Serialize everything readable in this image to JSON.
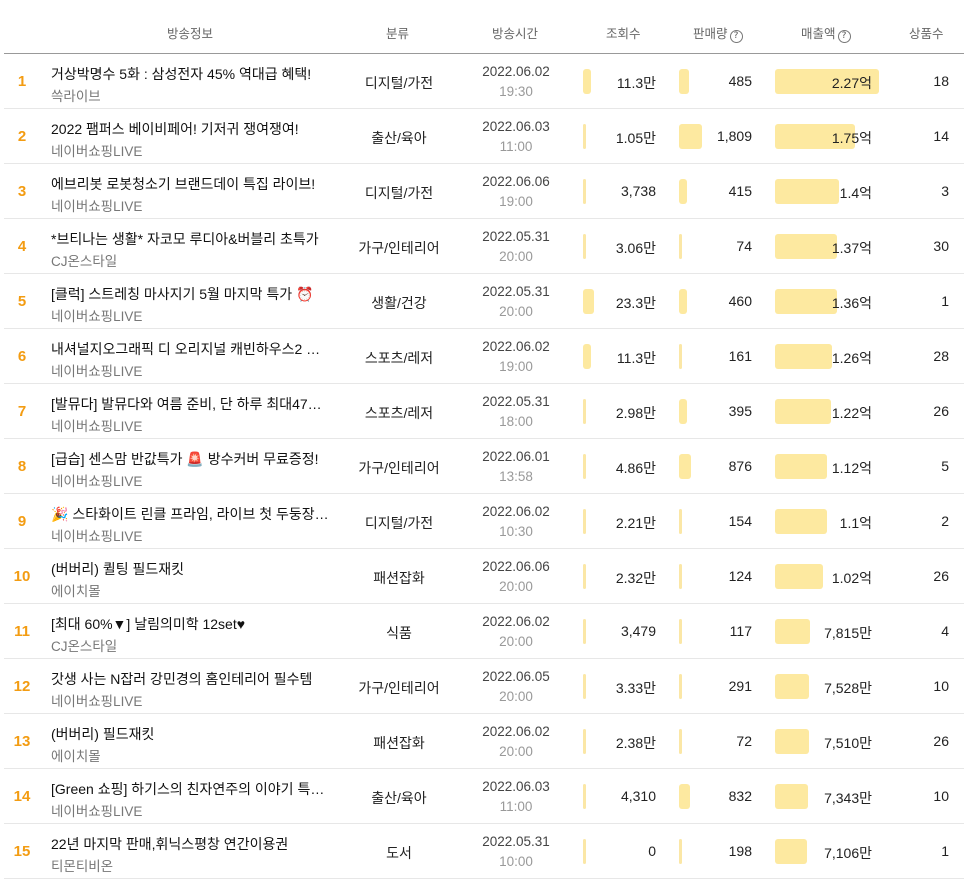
{
  "headers": {
    "info": "방송정보",
    "category": "분류",
    "time": "방송시간",
    "views": "조회수",
    "sales": "판매량",
    "revenue": "매출액",
    "count": "상품수",
    "help_glyph": "?"
  },
  "rows": [
    {
      "rank": "1",
      "title": "거상박명수 5화 : 삼성전자 45% 역대급 혜택!",
      "seller": "쓱라이브",
      "category": "디지털/가전",
      "date": "2022.06.02",
      "time": "19:30",
      "views": "11.3만",
      "sales": "485",
      "revenue": "2.27억",
      "count": "18",
      "views_level": 0.05,
      "sales_level": 0.11,
      "revenue_level": 1.0
    },
    {
      "rank": "2",
      "title": "2022 팸퍼스 베이비페어! 기저귀 쟁여쟁여!",
      "seller": "네이버쇼핑LIVE",
      "category": "출산/육아",
      "date": "2022.06.03",
      "time": "11:00",
      "views": "1.05만",
      "sales": "1,809",
      "revenue": "1.75억",
      "count": "14",
      "views_level": 0.0,
      "sales_level": 0.26,
      "revenue_level": 0.77
    },
    {
      "rank": "3",
      "title": "에브리봇 로봇청소기 브랜드데이 특집 라이브!",
      "seller": "네이버쇼핑LIVE",
      "category": "디지털/가전",
      "date": "2022.06.06",
      "time": "19:00",
      "views": "3,738",
      "sales": "415",
      "revenue": "1.4억",
      "count": "3",
      "views_level": 0.0,
      "sales_level": 0.05,
      "revenue_level": 0.62
    },
    {
      "rank": "4",
      "title": "*브티나는 생활* 자코모 루디아&버블리 초특가",
      "seller": "CJ온스타일",
      "category": "가구/인테리어",
      "date": "2022.05.31",
      "time": "20:00",
      "views": "3.06만",
      "sales": "74",
      "revenue": "1.37억",
      "count": "30",
      "views_level": 0.0,
      "sales_level": 0.0,
      "revenue_level": 0.6
    },
    {
      "rank": "5",
      "title": "[클럭] 스트레칭 마사지기 5월 마지막 특가 ⏰",
      "seller": "네이버쇼핑LIVE",
      "category": "생활/건강",
      "date": "2022.05.31",
      "time": "20:00",
      "views": "23.3만",
      "sales": "460",
      "revenue": "1.36억",
      "count": "1",
      "views_level": 0.15,
      "sales_level": 0.06,
      "revenue_level": 0.6
    },
    {
      "rank": "6",
      "title": "내셔널지오그래픽 디 오리지널 캐빈하우스2 …",
      "seller": "네이버쇼핑LIVE",
      "category": "스포츠/레저",
      "date": "2022.06.02",
      "time": "19:00",
      "views": "11.3만",
      "sales": "161",
      "revenue": "1.26억",
      "count": "28",
      "views_level": 0.05,
      "sales_level": 0.0,
      "revenue_level": 0.55
    },
    {
      "rank": "7",
      "title": "[발뮤다] 발뮤다와 여름 준비, 단 하루 최대47…",
      "seller": "네이버쇼핑LIVE",
      "category": "스포츠/레저",
      "date": "2022.05.31",
      "time": "18:00",
      "views": "2.98만",
      "sales": "395",
      "revenue": "1.22억",
      "count": "26",
      "views_level": 0.0,
      "sales_level": 0.05,
      "revenue_level": 0.54
    },
    {
      "rank": "8",
      "title": "[급습] 센스맘 반값특가 🚨 방수커버 무료증정!",
      "seller": "네이버쇼핑LIVE",
      "category": "가구/인테리어",
      "date": "2022.06.01",
      "time": "13:58",
      "views": "4.86만",
      "sales": "876",
      "revenue": "1.12억",
      "count": "5",
      "views_level": 0.0,
      "sales_level": 0.13,
      "revenue_level": 0.5
    },
    {
      "rank": "9",
      "title": "🎉 스타화이트 린클 프라임, 라이브 첫 두둥장…",
      "seller": "네이버쇼핑LIVE",
      "category": "디지털/가전",
      "date": "2022.06.02",
      "time": "10:30",
      "views": "2.21만",
      "sales": "154",
      "revenue": "1.1억",
      "count": "2",
      "views_level": 0.0,
      "sales_level": 0.0,
      "revenue_level": 0.5
    },
    {
      "rank": "10",
      "title": "(버버리) 퀼팅 필드재킷",
      "seller": "에이치몰",
      "category": "패션잡화",
      "date": "2022.06.06",
      "time": "20:00",
      "views": "2.32만",
      "sales": "124",
      "revenue": "1.02억",
      "count": "26",
      "views_level": 0.0,
      "sales_level": 0.0,
      "revenue_level": 0.46
    },
    {
      "rank": "11",
      "title": "[최대 60%▼] 날림의미학 12set♥",
      "seller": "CJ온스타일",
      "category": "식품",
      "date": "2022.06.02",
      "time": "20:00",
      "views": "3,479",
      "sales": "117",
      "revenue": "7,815만",
      "count": "4",
      "views_level": 0.0,
      "sales_level": 0.0,
      "revenue_level": 0.34
    },
    {
      "rank": "12",
      "title": "갓생 사는 N잡러 강민경의 홈인테리어 필수템",
      "seller": "네이버쇼핑LIVE",
      "category": "가구/인테리어",
      "date": "2022.06.05",
      "time": "20:00",
      "views": "3.33만",
      "sales": "291",
      "revenue": "7,528만",
      "count": "10",
      "views_level": 0.0,
      "sales_level": 0.0,
      "revenue_level": 0.33
    },
    {
      "rank": "13",
      "title": "(버버리) 필드재킷",
      "seller": "에이치몰",
      "category": "패션잡화",
      "date": "2022.06.02",
      "time": "20:00",
      "views": "2.38만",
      "sales": "72",
      "revenue": "7,510만",
      "count": "26",
      "views_level": 0.0,
      "sales_level": 0.0,
      "revenue_level": 0.33
    },
    {
      "rank": "14",
      "title": "[Green 쇼핑] 하기스의 친자연주의 이야기 특…",
      "seller": "네이버쇼핑LIVE",
      "category": "출산/육아",
      "date": "2022.06.03",
      "time": "11:00",
      "views": "4,310",
      "sales": "832",
      "revenue": "7,343만",
      "count": "10",
      "views_level": 0.0,
      "sales_level": 0.12,
      "revenue_level": 0.32
    },
    {
      "rank": "15",
      "title": "22년 마지막 판매,휘닉스평창 연간이용권",
      "seller": "티몬티비온",
      "category": "도서",
      "date": "2022.05.31",
      "time": "10:00",
      "views": "0",
      "sales": "198",
      "revenue": "7,106만",
      "count": "1",
      "views_level": 0.0,
      "sales_level": 0.0,
      "revenue_level": 0.31
    }
  ]
}
